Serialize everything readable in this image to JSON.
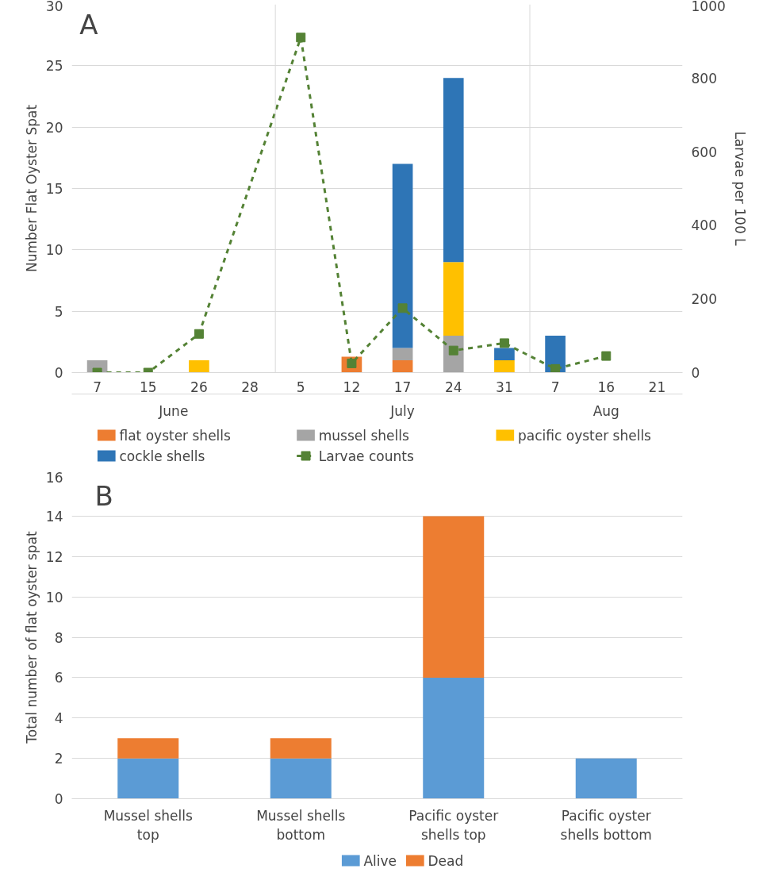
{
  "chart_data": [
    {
      "type": "bar",
      "title": "A",
      "ylabel": "Number Flat Oyster Spat",
      "y2label": "Larvae per 100 L",
      "categories": [
        "7",
        "15",
        "26",
        "28",
        "5",
        "12",
        "17",
        "24",
        "31",
        "7",
        "16",
        "21"
      ],
      "stacked": true,
      "ylim": [
        0,
        30
      ],
      "yticks": [
        0,
        5,
        10,
        15,
        20,
        25,
        30
      ],
      "y2lim": [
        0,
        1000
      ],
      "y2ticks": [
        0,
        200,
        400,
        600,
        800,
        1000
      ],
      "grid": "y",
      "legend": "bottom",
      "annotations": [
        "June",
        "July",
        "Aug"
      ],
      "series": [
        {
          "name": "flat oyster shells",
          "color": "#ed7d31",
          "values": [
            0,
            0,
            0,
            0,
            0,
            1.3,
            1,
            0,
            0,
            0,
            0,
            0
          ]
        },
        {
          "name": "mussel shells",
          "color": "#a5a5a5",
          "values": [
            1,
            0,
            0,
            0,
            0,
            0,
            1,
            3,
            0,
            0,
            0,
            0
          ]
        },
        {
          "name": "pacific oyster shells",
          "color": "#ffc000",
          "values": [
            0,
            0,
            1,
            0,
            0,
            0,
            0,
            6,
            1,
            0,
            0,
            0
          ]
        },
        {
          "name": "cockle shells",
          "color": "#2e75b6",
          "values": [
            0,
            0,
            0,
            0,
            0,
            0,
            15,
            15,
            1,
            3,
            0,
            0
          ]
        },
        {
          "name": "Larvae counts",
          "type": "line",
          "axis": "y2",
          "color": "#548235",
          "marker": "square",
          "line_style": "dashed",
          "values": [
            0,
            0,
            105,
            null,
            910,
            25,
            175,
            60,
            80,
            10,
            45,
            null
          ]
        }
      ]
    },
    {
      "type": "bar",
      "title": "B",
      "ylabel": "Total number of flat oyster spat",
      "categories": [
        "Mussel shells top",
        "Mussel shells bottom",
        "Pacific oyster shells top",
        "Pacific oyster shells bottom"
      ],
      "stacked": true,
      "ylim": [
        0,
        16
      ],
      "yticks": [
        0,
        2,
        4,
        6,
        8,
        10,
        12,
        14,
        16
      ],
      "grid": "y",
      "legend": "bottom",
      "series": [
        {
          "name": "Alive",
          "color": "#5b9bd5",
          "values": [
            2,
            2,
            6,
            2
          ]
        },
        {
          "name": "Dead",
          "color": "#ed7d31",
          "values": [
            1,
            1,
            8,
            0
          ]
        }
      ]
    }
  ]
}
